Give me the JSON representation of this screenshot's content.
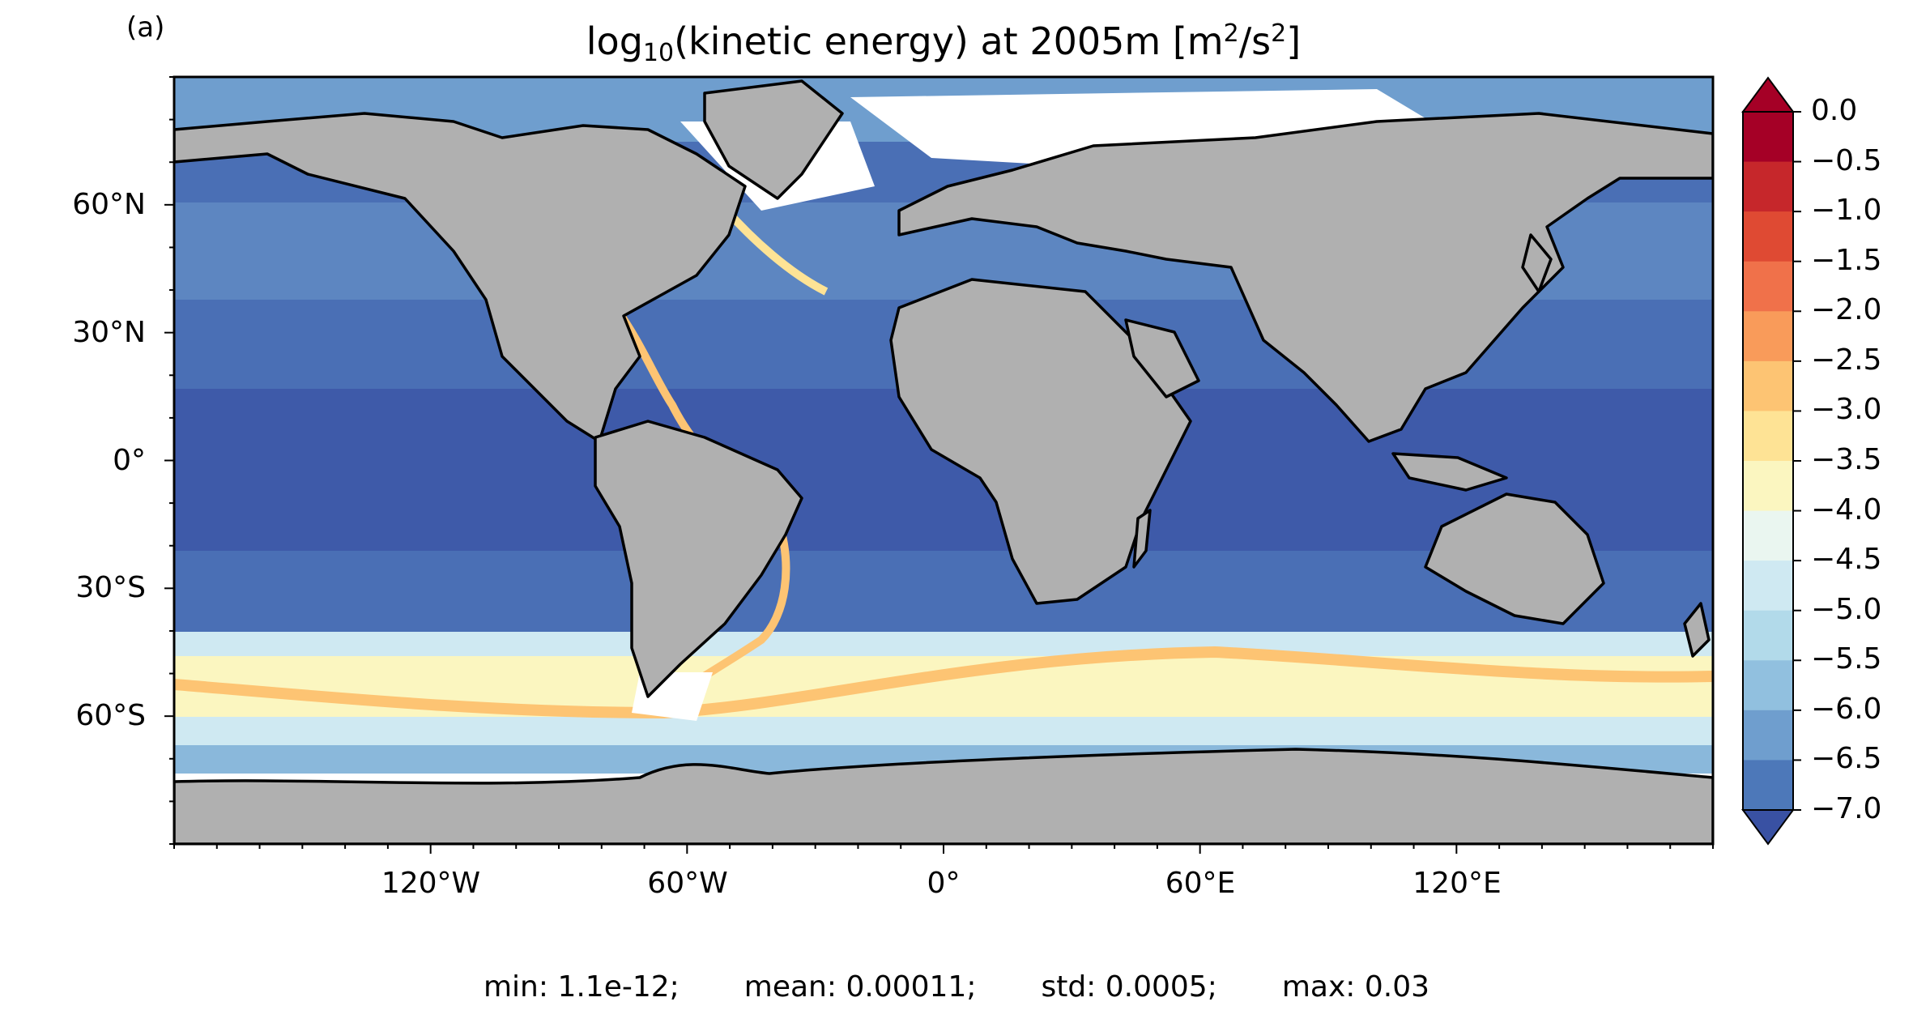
{
  "panel_label": "(a)",
  "title": {
    "prefix": "log",
    "subscript": "10",
    "middle": "(kinetic energy) at 2005m [m",
    "sup1": "2",
    "between": "/s",
    "sup2": "2",
    "suffix": "]"
  },
  "map": {
    "projection": "equirectangular",
    "lon_range": [
      -180,
      180
    ],
    "lat_range": [
      -90,
      90
    ],
    "lat_ticks": [
      "60°N",
      "30°N",
      "0°",
      "30°S",
      "60°S"
    ],
    "lon_ticks": [
      "120°W",
      "60°W",
      "0°",
      "60°E",
      "120°E"
    ],
    "land_color": "#b0b0b0",
    "coast_color": "#000000",
    "missing_color": "#ffffff"
  },
  "colorbar": {
    "ticks": [
      "0.0",
      "−0.5",
      "−1.0",
      "−1.5",
      "−2.0",
      "−2.5",
      "−3.0",
      "−3.5",
      "−4.0",
      "−4.5",
      "−5.0",
      "−5.5",
      "−6.0",
      "−6.5",
      "−7.0"
    ],
    "colors": [
      "#a50026",
      "#c6272b",
      "#df4a33",
      "#f0714a",
      "#f99b5a",
      "#fdc473",
      "#fee395",
      "#fbf6c0",
      "#eaf6f0",
      "#cfe9f2",
      "#b2daea",
      "#91c0df",
      "#6f9ece",
      "#4d78b9",
      "#3951a3"
    ],
    "extend": "both"
  },
  "stats": {
    "min": "min: 1.1e-12;",
    "mean": "mean: 0.00011;",
    "std": "std: 0.0005;",
    "max": "max: 0.03"
  }
}
